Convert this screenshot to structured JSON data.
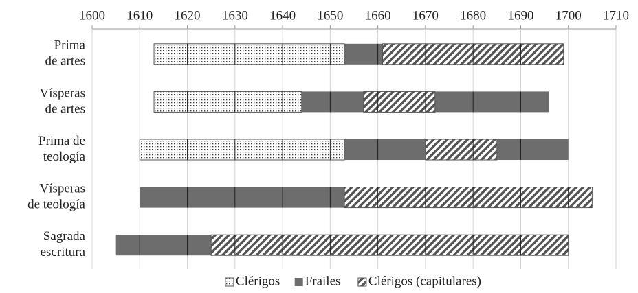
{
  "chart_data": {
    "type": "timeline",
    "categories": [
      [
        "Prima",
        "de artes"
      ],
      [
        "Vísperas",
        "de artes"
      ],
      [
        "Prima de",
        "teología"
      ],
      [
        "Vísperas",
        "de teología"
      ],
      [
        "Sagrada",
        "escritura"
      ]
    ],
    "series": [
      {
        "name": "Clérigos",
        "color": "#555555",
        "pattern": "dots",
        "values": [
          [
            [
              1613,
              1653
            ]
          ],
          [
            [
              1613,
              1644
            ]
          ],
          [
            [
              1610,
              1653
            ]
          ],
          [],
          []
        ]
      },
      {
        "name": "Frailes",
        "color": "#6d6d6d",
        "pattern": "solid",
        "values": [
          [
            [
              1653,
              1661
            ]
          ],
          [
            [
              1644,
              1657
            ],
            [
              1672,
              1696
            ]
          ],
          [
            [
              1653,
              1670
            ],
            [
              1685,
              1700
            ]
          ],
          [
            [
              1610,
              1653
            ]
          ],
          [
            [
              1605,
              1625
            ]
          ]
        ]
      },
      {
        "name": "Clérigos (capitulares)",
        "color": "#555555",
        "pattern": "hatch",
        "values": [
          [
            [
              1661,
              1699
            ]
          ],
          [
            [
              1657,
              1672
            ]
          ],
          [
            [
              1670,
              1685
            ]
          ],
          [
            [
              1653,
              1705
            ]
          ],
          [
            [
              1625,
              1700
            ]
          ]
        ]
      }
    ],
    "xlim": [
      1600,
      1710
    ],
    "xticks": [
      1600,
      1610,
      1620,
      1630,
      1640,
      1650,
      1660,
      1670,
      1680,
      1690,
      1700,
      1710
    ],
    "grid": true,
    "legend": "bottom"
  }
}
